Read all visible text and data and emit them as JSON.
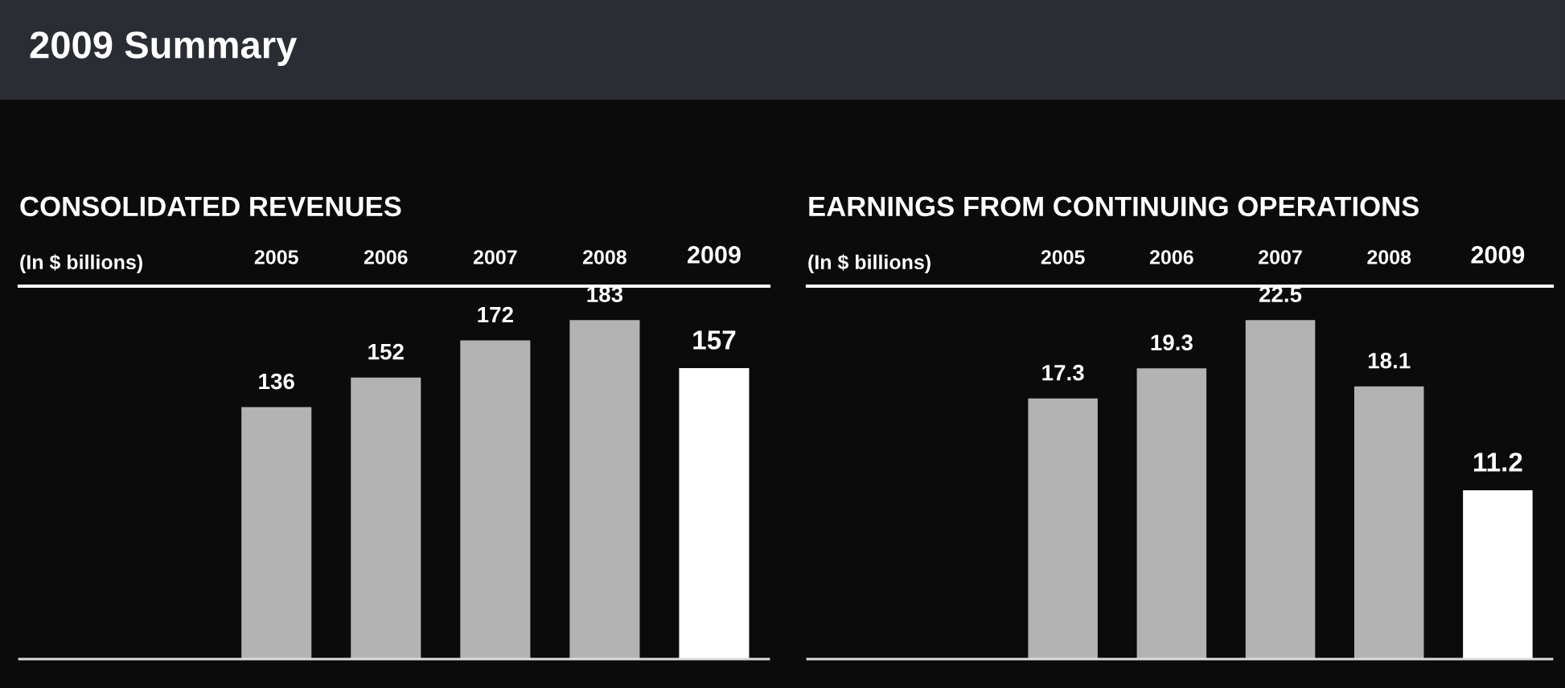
{
  "chart_data": [
    {
      "type": "bar",
      "title": "CONSOLIDATED REVENUES",
      "ylabel": "(In $ billions)",
      "annotations": [
        "2009 Summary"
      ],
      "categories": [
        "2005",
        "2006",
        "2007",
        "2008",
        "2009"
      ],
      "values": [
        136,
        152,
        172,
        183,
        157
      ],
      "colors": [
        "#b3b3b3",
        "#b3b3b3",
        "#b3b3b3",
        "#b3b3b3",
        "#ffffff"
      ],
      "data_labels": true,
      "grid": false,
      "legend": false
    },
    {
      "type": "bar",
      "title": "EARNINGS FROM CONTINUING OPERATIONS",
      "ylabel": "(In $ billions)",
      "categories": [
        "2005",
        "2006",
        "2007",
        "2008",
        "2009"
      ],
      "values": [
        17.3,
        19.3,
        22.5,
        18.1,
        11.2
      ],
      "colors": [
        "#b3b3b3",
        "#b3b3b3",
        "#b3b3b3",
        "#b3b3b3",
        "#ffffff"
      ],
      "data_labels": true,
      "grid": false,
      "legend": false
    }
  ]
}
